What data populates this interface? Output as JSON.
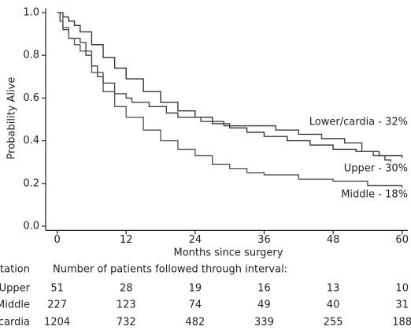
{
  "chart_data": {
    "type": "step",
    "xlabel": "Months since surgery",
    "ylabel": "Probability Alive",
    "xlim": [
      -2,
      61
    ],
    "ylim": [
      -0.02,
      1.02
    ],
    "xticks": [
      0,
      12,
      24,
      36,
      48,
      60
    ],
    "yticks": [
      {
        "value": 0,
        "label": "0.0"
      },
      0.2,
      0.4,
      0.6,
      0.8,
      {
        "value": 1,
        "label": "1.0"
      }
    ],
    "series": [
      {
        "name": "Lower/cardia - 32%",
        "color": "#333333",
        "x": [
          0,
          1,
          2,
          3,
          4,
          6,
          8,
          10,
          12,
          15,
          18,
          21,
          24,
          27,
          30,
          33,
          36,
          40,
          44,
          48,
          52,
          56,
          60
        ],
        "values": [
          1.0,
          0.98,
          0.96,
          0.94,
          0.91,
          0.85,
          0.79,
          0.74,
          0.69,
          0.63,
          0.58,
          0.54,
          0.51,
          0.48,
          0.46,
          0.44,
          0.42,
          0.4,
          0.38,
          0.36,
          0.35,
          0.33,
          0.32
        ]
      },
      {
        "name": "Upper - 30%",
        "color": "#444444",
        "x": [
          0,
          0.5,
          1,
          2,
          4,
          5,
          6,
          7,
          8,
          10,
          12,
          13,
          16,
          19,
          21,
          25,
          29,
          38,
          42,
          46,
          50,
          53,
          55,
          57,
          58
        ],
        "values": [
          1.0,
          0.96,
          0.92,
          0.88,
          0.86,
          0.8,
          0.75,
          0.7,
          0.67,
          0.62,
          0.6,
          0.58,
          0.56,
          0.53,
          0.51,
          0.49,
          0.47,
          0.45,
          0.43,
          0.41,
          0.39,
          0.35,
          0.33,
          0.31,
          0.3
        ]
      },
      {
        "name": "Middle - 18%",
        "color": "#555555",
        "x": [
          0,
          1,
          2,
          3,
          4,
          6,
          8,
          10,
          12,
          15,
          18,
          21,
          24,
          27,
          30,
          33,
          36,
          42,
          48,
          54,
          60
        ],
        "values": [
          1.0,
          0.93,
          0.88,
          0.85,
          0.82,
          0.72,
          0.63,
          0.56,
          0.51,
          0.45,
          0.4,
          0.36,
          0.33,
          0.29,
          0.27,
          0.25,
          0.24,
          0.22,
          0.21,
          0.19,
          0.18
        ]
      }
    ]
  },
  "risk_table": {
    "title": "Number of patients followed through interval:",
    "label_header": "Station",
    "rows": [
      {
        "label": "Upper",
        "counts": [
          "51",
          "28",
          "19",
          "16",
          "13",
          "10"
        ]
      },
      {
        "label": "Middle",
        "counts": [
          "227",
          "123",
          "74",
          "49",
          "40",
          "31"
        ]
      },
      {
        "label": "Lower/cardia",
        "counts": [
          "1204",
          "732",
          "482",
          "339",
          "255",
          "188"
        ]
      }
    ]
  }
}
